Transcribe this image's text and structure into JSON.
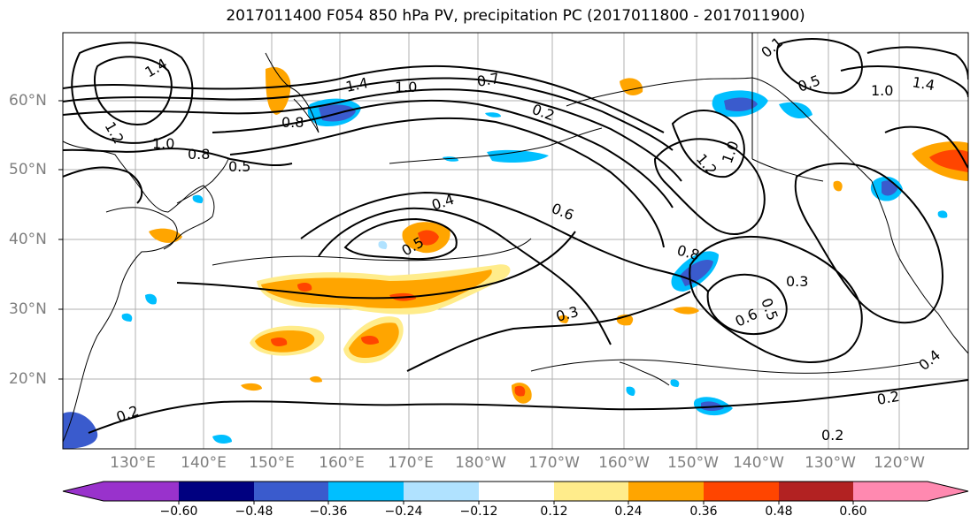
{
  "title": "2017011400 F054 850 hPa PV, precipitation PC (2017011800 - 2017011900)",
  "lat_labels": [
    "60°N",
    "50°N",
    "40°N",
    "30°N",
    "20°N"
  ],
  "lon_labels": [
    "130°E",
    "140°E",
    "150°E",
    "160°E",
    "170°E",
    "180°W",
    "170°W",
    "160°W",
    "150°W",
    "140°W",
    "130°W",
    "120°W"
  ],
  "contour_labels": [
    "1.4",
    "1.2",
    "1.0",
    "0.8",
    "0.8",
    "0.5",
    "1.4",
    "1.0",
    "0.7",
    "0.2",
    "0.4",
    "0.6",
    "0.5",
    "0.3",
    "0.8",
    "0.3",
    "0.5",
    "0.6",
    "1.2",
    "1.0",
    "0.1",
    "0.5",
    "1.0",
    "1.4",
    "0.2",
    "0.2",
    "0.2",
    "0.4"
  ],
  "colorbar": {
    "ticks": [
      "−0.60",
      "−0.48",
      "−0.36",
      "−0.24",
      "−0.12",
      "0.12",
      "0.24",
      "0.36",
      "0.48",
      "0.60"
    ],
    "colors": [
      "#9932cc",
      "#000080",
      "#3a5bcd",
      "#00bfff",
      "#b0e2ff",
      "#ffffff",
      "#ffec8b",
      "#ffa500",
      "#ff4500",
      "#b22222",
      "#ff89b0"
    ]
  },
  "fill_colors": {
    "light_orange": "#ffec8b",
    "orange": "#ffa500",
    "red_orange": "#ff4500",
    "light_blue": "#b0e2ff",
    "sky_blue": "#00bfff",
    "royal_blue": "#3a5bcd"
  }
}
